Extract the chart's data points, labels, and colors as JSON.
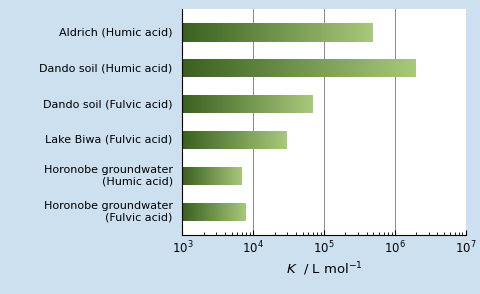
{
  "categories": [
    "Aldrich (Humic acid)",
    "Dando soil (Humic acid)",
    "Dando soil (Fulvic acid)",
    "Lake Biwa (Fulvic acid)",
    "Horonobe groundwater\n(Humic acid)",
    "Horonobe groundwater\n(Fulvic acid)"
  ],
  "values": [
    500000.0,
    2000000.0,
    70000.0,
    30000.0,
    7000,
    8000
  ],
  "bar_color_dark": "#3a6020",
  "bar_color_light": "#a8c87a",
  "background_color": "#cce0f0",
  "plot_bg_color": "#ffffff",
  "xmin": 1000.0,
  "xmax": 10000000.0,
  "bar_height": 0.52,
  "label_fontsize": 8.0,
  "xlabel_fontsize": 9.5,
  "tick_fontsize": 8.5
}
